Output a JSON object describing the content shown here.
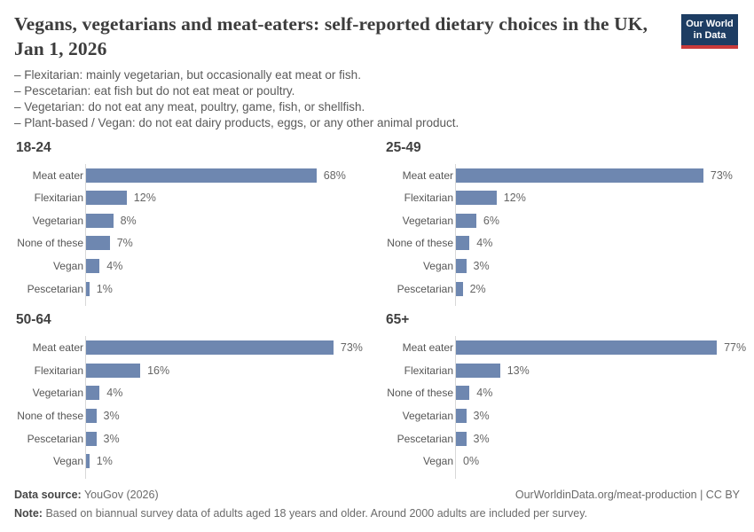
{
  "header": {
    "title": "Vegans, vegetarians and meat-eaters: self-reported dietary choices in the UK, Jan 1, 2026",
    "logo": {
      "line1": "Our World",
      "line2": "in Data"
    },
    "definitions": [
      "– Flexitarian: mainly vegetarian, but occasionally eat meat or fish.",
      "– Pescetarian: eat fish but do not eat meat or poultry.",
      "– Vegetarian: do not eat any meat, poultry, game, fish, or shellfish.",
      "– Plant-based / Vegan: do not eat dairy products, eggs, or any other animal product."
    ]
  },
  "chart_data": [
    {
      "type": "bar",
      "orientation": "horizontal",
      "title": "18-24",
      "unit": "%",
      "xlim": [
        0,
        100
      ],
      "grid": false,
      "categories": [
        "Meat eater",
        "Flexitarian",
        "Vegetarian",
        "None of these",
        "Vegan",
        "Pescetarian"
      ],
      "values": [
        68,
        12,
        8,
        7,
        4,
        1
      ],
      "value_labels": [
        "68%",
        "12%",
        "8%",
        "7%",
        "4%",
        "1%"
      ]
    },
    {
      "type": "bar",
      "orientation": "horizontal",
      "title": "25-49",
      "unit": "%",
      "xlim": [
        0,
        100
      ],
      "grid": false,
      "categories": [
        "Meat eater",
        "Flexitarian",
        "Vegetarian",
        "None of these",
        "Vegan",
        "Pescetarian"
      ],
      "values": [
        73,
        12,
        6,
        4,
        3,
        2
      ],
      "value_labels": [
        "73%",
        "12%",
        "6%",
        "4%",
        "3%",
        "2%"
      ]
    },
    {
      "type": "bar",
      "orientation": "horizontal",
      "title": "50-64",
      "unit": "%",
      "xlim": [
        0,
        100
      ],
      "grid": false,
      "categories": [
        "Meat eater",
        "Flexitarian",
        "Vegetarian",
        "None of these",
        "Pescetarian",
        "Vegan"
      ],
      "values": [
        73,
        16,
        4,
        3,
        3,
        1
      ],
      "value_labels": [
        "73%",
        "16%",
        "4%",
        "3%",
        "3%",
        "1%"
      ]
    },
    {
      "type": "bar",
      "orientation": "horizontal",
      "title": "65+",
      "unit": "%",
      "xlim": [
        0,
        100
      ],
      "grid": false,
      "categories": [
        "Meat eater",
        "Flexitarian",
        "None of these",
        "Vegetarian",
        "Pescetarian",
        "Vegan"
      ],
      "values": [
        77,
        13,
        4,
        3,
        3,
        0
      ],
      "value_labels": [
        "77%",
        "13%",
        "4%",
        "3%",
        "3%",
        "0%"
      ]
    }
  ],
  "footer": {
    "source_label": "Data source:",
    "source_value": "YouGov (2026)",
    "link": "OurWorldinData.org/meat-production | CC BY",
    "note_label": "Note:",
    "note_value": "Based on biannual survey data of adults aged 18 years and older. Around 2000 adults are included per survey."
  },
  "colors": {
    "bar": "#6e87b0",
    "axis": "#d8d8d8",
    "logo_bg": "#1d3d63",
    "logo_stripe": "#c93a3a"
  }
}
